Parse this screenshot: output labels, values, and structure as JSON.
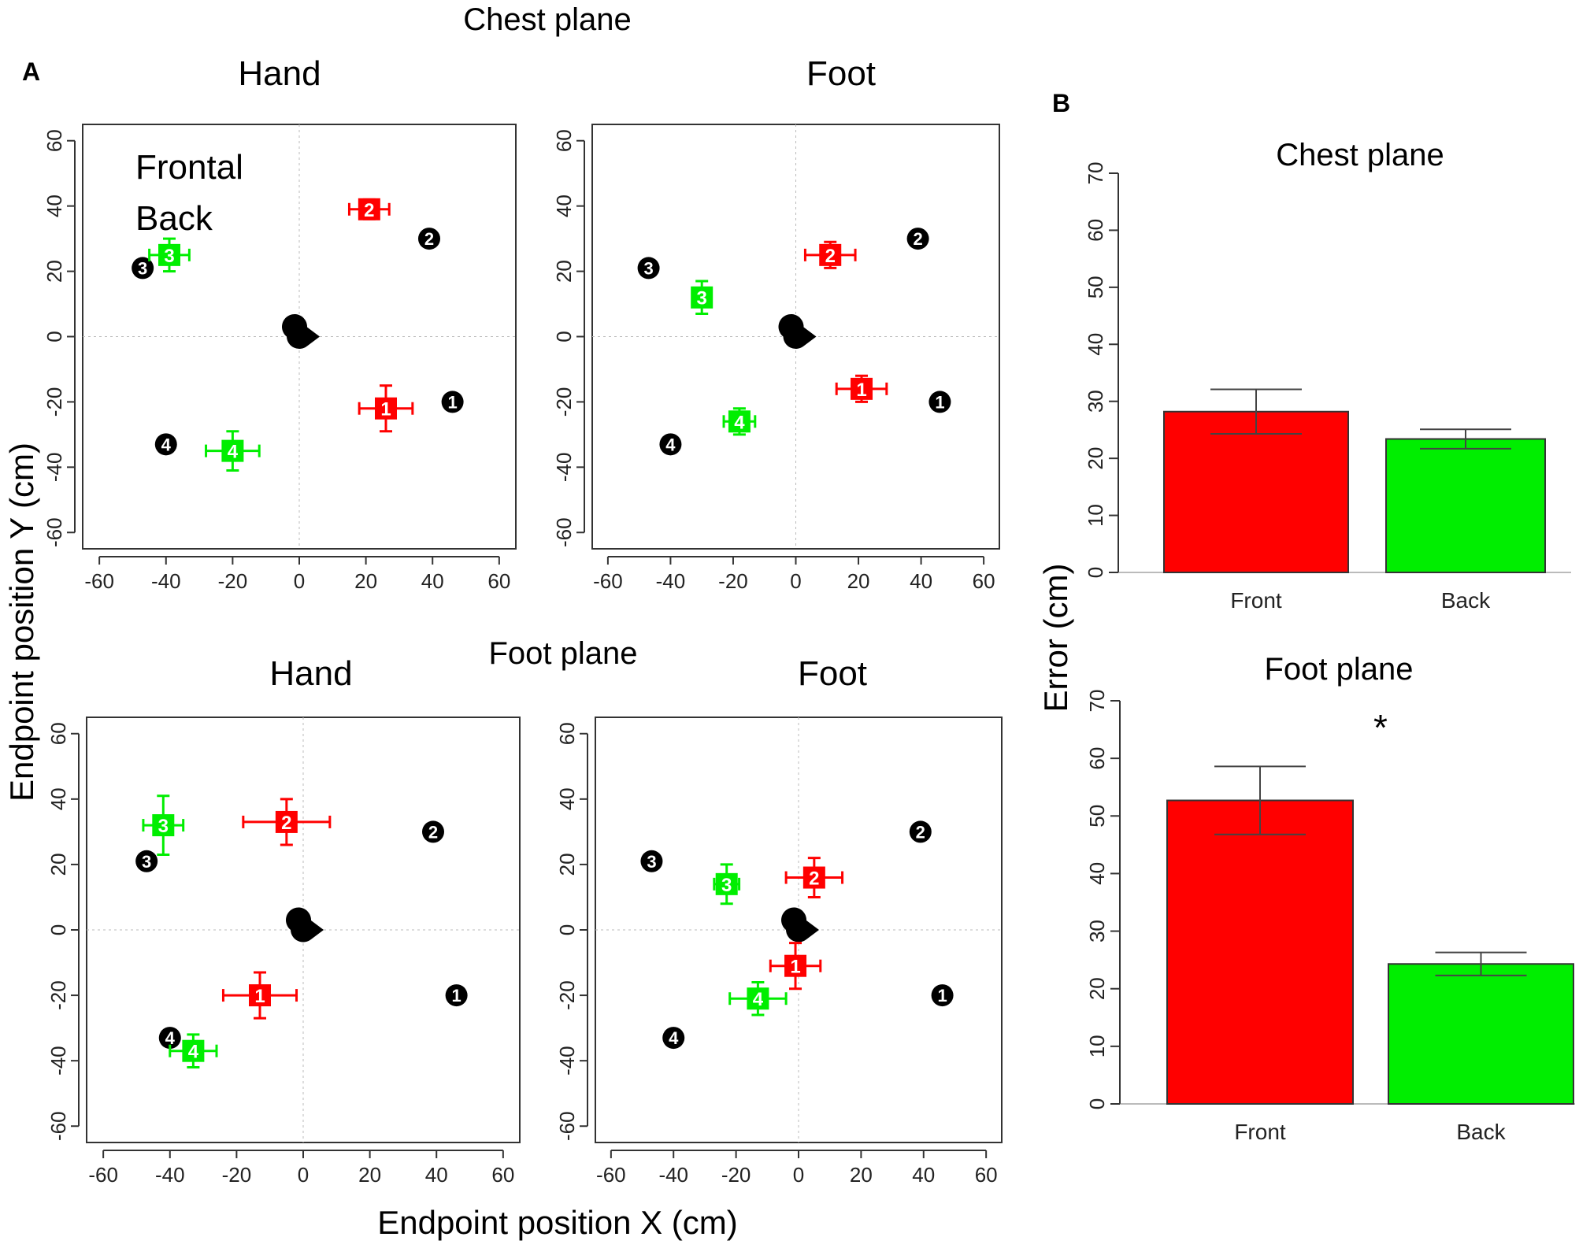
{
  "panel_labels": {
    "a": "A",
    "b": "B"
  },
  "titles": {
    "chest_plane": "Chest plane",
    "foot_plane": "Foot plane",
    "hand": "Hand",
    "foot": "Foot"
  },
  "axis_labels": {
    "x": "Endpoint position X (cm)",
    "y": "Endpoint position Y (cm)",
    "error": "Error (cm)"
  },
  "legend": {
    "frontal": "Frontal",
    "back": "Back"
  },
  "colors": {
    "frontal": "#ff0000",
    "back": "#00ee00",
    "target": "#000000",
    "bar_border": "#333333"
  },
  "significance": "*",
  "chart_data": [
    {
      "type": "scatter",
      "id": "chest_hand",
      "plane": "Chest plane",
      "title": "Hand",
      "xlabel": "Endpoint position X (cm)",
      "ylabel": "Endpoint position Y (cm)",
      "xlim": [
        -65,
        65
      ],
      "ylim": [
        -65,
        65
      ],
      "xticks": [
        -60,
        -40,
        -20,
        0,
        20,
        40,
        60
      ],
      "yticks": [
        -60,
        -40,
        -20,
        0,
        20,
        40,
        60
      ],
      "start": {
        "x": 0,
        "y": 0
      },
      "targets": [
        {
          "label": "1",
          "x": 46,
          "y": -20
        },
        {
          "label": "2",
          "x": 39,
          "y": 30
        },
        {
          "label": "3",
          "x": -47,
          "y": 21
        },
        {
          "label": "4",
          "x": -40,
          "y": -33
        }
      ],
      "series": [
        {
          "name": "Frontal",
          "points": [
            {
              "label": "1",
              "x": 26,
              "y": -22,
              "xerr": 8,
              "yerr": 7
            },
            {
              "label": "2",
              "x": 21,
              "y": 39,
              "xerr": 6,
              "yerr": 3
            }
          ]
        },
        {
          "name": "Back",
          "points": [
            {
              "label": "3",
              "x": -39,
              "y": 25,
              "xerr": 6,
              "yerr": 5
            },
            {
              "label": "4",
              "x": -20,
              "y": -35,
              "xerr": 8,
              "yerr": 6
            }
          ]
        }
      ]
    },
    {
      "type": "scatter",
      "id": "chest_foot",
      "plane": "Chest plane",
      "title": "Foot",
      "xlabel": "Endpoint position X (cm)",
      "ylabel": "Endpoint position Y (cm)",
      "xlim": [
        -65,
        65
      ],
      "ylim": [
        -65,
        65
      ],
      "xticks": [
        -60,
        -40,
        -20,
        0,
        20,
        40,
        60
      ],
      "yticks": [
        -60,
        -40,
        -20,
        0,
        20,
        40,
        60
      ],
      "start": {
        "x": 0,
        "y": 0
      },
      "targets": [
        {
          "label": "1",
          "x": 46,
          "y": -20
        },
        {
          "label": "2",
          "x": 39,
          "y": 30
        },
        {
          "label": "3",
          "x": -47,
          "y": 21
        },
        {
          "label": "4",
          "x": -40,
          "y": -33
        }
      ],
      "series": [
        {
          "name": "Frontal",
          "points": [
            {
              "label": "1",
              "x": 21,
              "y": -16,
              "xerr": 8,
              "yerr": 4
            },
            {
              "label": "2",
              "x": 11,
              "y": 25,
              "xerr": 8,
              "yerr": 4
            }
          ]
        },
        {
          "name": "Back",
          "points": [
            {
              "label": "3",
              "x": -30,
              "y": 12,
              "xerr": 3,
              "yerr": 5
            },
            {
              "label": "4",
              "x": -18,
              "y": -26,
              "xerr": 5,
              "yerr": 4
            }
          ]
        }
      ]
    },
    {
      "type": "scatter",
      "id": "foot_hand",
      "plane": "Foot plane",
      "title": "Hand",
      "xlabel": "Endpoint position X (cm)",
      "ylabel": "Endpoint position Y (cm)",
      "xlim": [
        -65,
        65
      ],
      "ylim": [
        -65,
        65
      ],
      "xticks": [
        -60,
        -40,
        -20,
        0,
        20,
        40,
        60
      ],
      "yticks": [
        -60,
        -40,
        -20,
        0,
        20,
        40,
        60
      ],
      "start": {
        "x": 0,
        "y": 0
      },
      "targets": [
        {
          "label": "1",
          "x": 46,
          "y": -20
        },
        {
          "label": "2",
          "x": 39,
          "y": 30
        },
        {
          "label": "3",
          "x": -47,
          "y": 21
        },
        {
          "label": "4",
          "x": -40,
          "y": -33
        }
      ],
      "series": [
        {
          "name": "Frontal",
          "points": [
            {
              "label": "1",
              "x": -13,
              "y": -20,
              "xerr": 11,
              "yerr": 7
            },
            {
              "label": "2",
              "x": -5,
              "y": 33,
              "xerr": 13,
              "yerr": 7
            }
          ]
        },
        {
          "name": "Back",
          "points": [
            {
              "label": "3",
              "x": -42,
              "y": 32,
              "xerr": 6,
              "yerr": 9
            },
            {
              "label": "4",
              "x": -33,
              "y": -37,
              "xerr": 7,
              "yerr": 5
            }
          ]
        }
      ]
    },
    {
      "type": "scatter",
      "id": "foot_foot",
      "plane": "Foot plane",
      "title": "Foot",
      "xlabel": "Endpoint position X (cm)",
      "ylabel": "Endpoint position Y (cm)",
      "xlim": [
        -65,
        65
      ],
      "ylim": [
        -65,
        65
      ],
      "xticks": [
        -60,
        -40,
        -20,
        0,
        20,
        40,
        60
      ],
      "yticks": [
        -60,
        -40,
        -20,
        0,
        20,
        40,
        60
      ],
      "start": {
        "x": 0,
        "y": 0
      },
      "targets": [
        {
          "label": "1",
          "x": 46,
          "y": -20
        },
        {
          "label": "2",
          "x": 39,
          "y": 30
        },
        {
          "label": "3",
          "x": -47,
          "y": 21
        },
        {
          "label": "4",
          "x": -40,
          "y": -33
        }
      ],
      "series": [
        {
          "name": "Frontal",
          "points": [
            {
              "label": "1",
              "x": -1,
              "y": -11,
              "xerr": 8,
              "yerr": 7
            },
            {
              "label": "2",
              "x": 5,
              "y": 16,
              "xerr": 9,
              "yerr": 6
            }
          ]
        },
        {
          "name": "Back",
          "points": [
            {
              "label": "3",
              "x": -23,
              "y": 14,
              "xerr": 4,
              "yerr": 6
            },
            {
              "label": "4",
              "x": -13,
              "y": -21,
              "xerr": 9,
              "yerr": 5
            }
          ]
        }
      ]
    },
    {
      "type": "bar",
      "id": "error_chest",
      "title": "Chest plane",
      "ylabel": "Error (cm)",
      "categories": [
        "Front",
        "Back"
      ],
      "values": [
        28.2,
        23.4
      ],
      "errors": [
        3.9,
        1.7
      ],
      "ylim": [
        0,
        70
      ],
      "yticks": [
        0,
        10,
        20,
        30,
        40,
        50,
        60,
        70
      ],
      "annotation": ""
    },
    {
      "type": "bar",
      "id": "error_foot",
      "title": "Foot plane",
      "ylabel": "Error (cm)",
      "categories": [
        "Front",
        "Back"
      ],
      "values": [
        52.7,
        24.3
      ],
      "errors": [
        5.9,
        2.0
      ],
      "ylim": [
        0,
        70
      ],
      "yticks": [
        0,
        10,
        20,
        30,
        40,
        50,
        60,
        70
      ],
      "annotation": "*"
    }
  ]
}
